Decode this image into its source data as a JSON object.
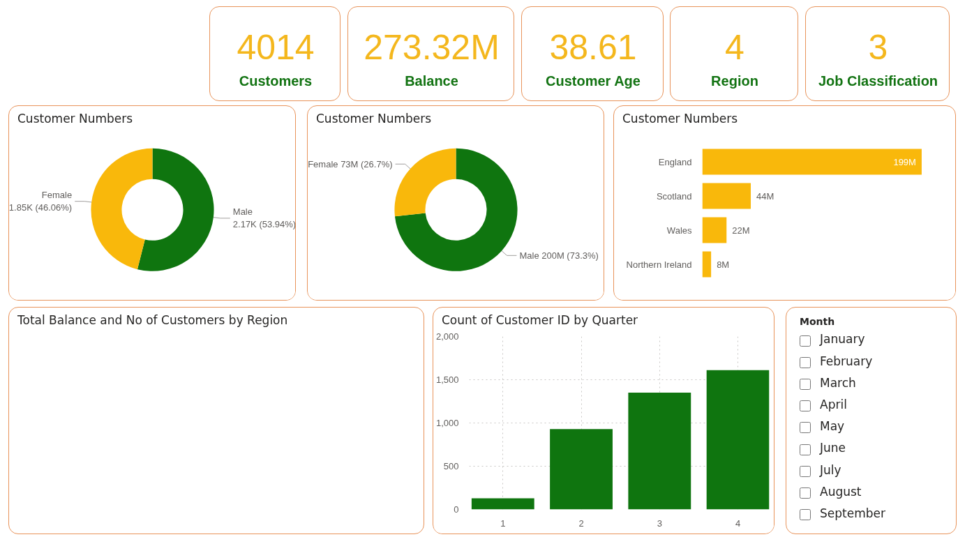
{
  "chart_data": [
    {
      "type": "other",
      "title": "Customers",
      "annotations": [
        "4014"
      ]
    },
    {
      "type": "other",
      "title": "Balance",
      "annotations": [
        "273.32M"
      ]
    },
    {
      "type": "other",
      "title": "Customer Age",
      "annotations": [
        "38.61"
      ]
    },
    {
      "type": "other",
      "title": "Region",
      "annotations": [
        "4"
      ]
    },
    {
      "type": "other",
      "title": "Job Classification",
      "annotations": [
        "3"
      ]
    },
    {
      "type": "donut",
      "title": "Customer Numbers",
      "categories": [
        "Male",
        "Female"
      ],
      "values": [
        53.94,
        46.06
      ],
      "colors": [
        "#0F750F",
        "#F9B80B"
      ],
      "value_labels": [
        "2.17K (53.94%)",
        "1.85K (46.06%)"
      ]
    },
    {
      "type": "donut",
      "title": "Customer Numbers",
      "categories": [
        "Male",
        "Female"
      ],
      "values": [
        73.3,
        26.7
      ],
      "colors": [
        "#0F750F",
        "#F9B80B"
      ],
      "value_labels": [
        "200M (73.3%)",
        "73M (26.7%)"
      ]
    },
    {
      "type": "bar",
      "orientation": "horizontal",
      "title": "Customer Numbers",
      "categories": [
        "England",
        "Scotland",
        "Wales",
        "Northern Ireland"
      ],
      "values": [
        199,
        44,
        22,
        8
      ],
      "color": "#F9B80B",
      "value_labels": [
        "199M",
        "44M",
        "22M",
        "8M"
      ],
      "xlim": [
        0,
        200
      ],
      "tick_labels": "y"
    },
    {
      "type": "other",
      "title": "Total Balance and No of Customers by Region"
    },
    {
      "type": "bar",
      "title": "Count of Customer ID by Quarter",
      "categories": [
        "1",
        "2",
        "3",
        "4"
      ],
      "values": [
        130,
        930,
        1350,
        1610
      ],
      "color": "#0F750F",
      "ylim": [
        0,
        2000
      ],
      "yticks": [
        0,
        500,
        {
          "value": 1000,
          "label": "1,000"
        },
        {
          "value": 1500,
          "label": "1,500"
        },
        {
          "value": 2000,
          "label": "2,000"
        }
      ],
      "grid": true
    },
    {
      "type": "other",
      "title": "Month",
      "annotations": [
        "January",
        "February",
        "March",
        "April",
        "May",
        "June",
        "July",
        "August",
        "September"
      ]
    }
  ]
}
